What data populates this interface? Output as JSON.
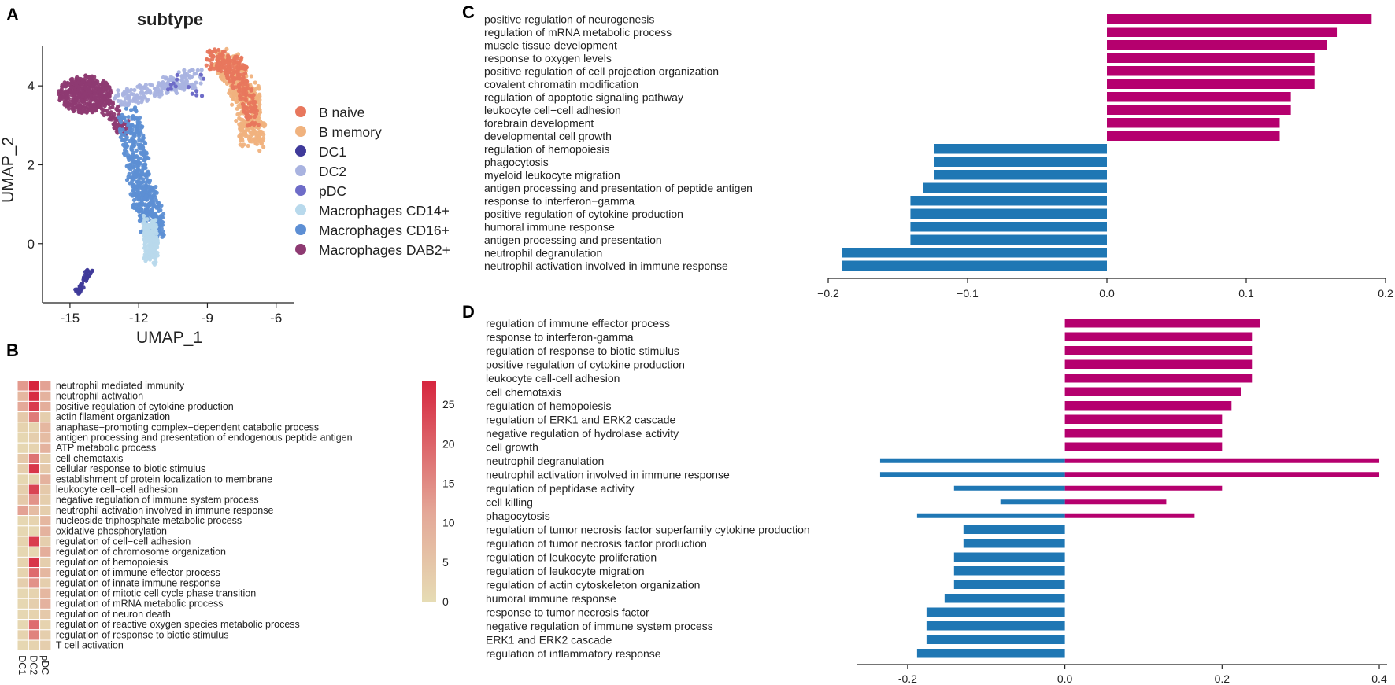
{
  "panels": {
    "A": "A",
    "B": "B",
    "C": "C",
    "D": "D"
  },
  "colors": {
    "up": "#b5006e",
    "down": "#1f77b4"
  },
  "chart_data": [
    {
      "id": "umap",
      "type": "scatter",
      "title": "subtype",
      "xlabel": "UMAP_1",
      "ylabel": "UMAP_2",
      "xlim": [
        -16.2,
        -5.2
      ],
      "ylim": [
        -1.5,
        5.0
      ],
      "xticks": [
        -15,
        -12,
        -9,
        -6
      ],
      "xtick_labels": [
        "-15",
        "-12",
        "-9",
        "-6"
      ],
      "yticks": [
        0,
        2,
        4
      ],
      "ytick_labels": [
        "0",
        "2",
        "4"
      ],
      "legend": [
        {
          "name": "B naive",
          "color": "#e8775d"
        },
        {
          "name": "B memory",
          "color": "#f0b27e"
        },
        {
          "name": "DC1",
          "color": "#3f3a9a"
        },
        {
          "name": "DC2",
          "color": "#a9b3e0"
        },
        {
          "name": "pDC",
          "color": "#6e6cc8"
        },
        {
          "name": "Macrophages  CD14+",
          "color": "#b8d9ec"
        },
        {
          "name": "Macrophages  CD16+",
          "color": "#5d8fd4"
        },
        {
          "name": "Macrophages  DAB2+",
          "color": "#8e3a72"
        }
      ]
    },
    {
      "id": "heatmap",
      "type": "heatmap",
      "columns": [
        "DC1",
        "DC2",
        "pDC"
      ],
      "rows": [
        "neutrophil mediated immunity",
        "neutrophil activation",
        "positive regulation of cytokine production",
        "actin filament organization",
        "anaphase−promoting complex−dependent catabolic process",
        "antigen processing and presentation of endogenous peptide antigen",
        "ATP metabolic process",
        "cell chemotaxis",
        "cellular response to biotic stimulus",
        "establishment of protein localization to membrane",
        "leukocyte cell−cell adhesion",
        "negative regulation of immune system process",
        "neutrophil activation involved in immune response",
        "nucleoside triphosphate metabolic process",
        "oxidative phosphorylation",
        "regulation of cell−cell adhesion",
        "regulation of chromosome organization",
        "regulation of hemopoiesis",
        "regulation of immune effector process",
        "regulation of innate immune response",
        "regulation of mitotic cell cycle phase transition",
        "regulation of mRNA metabolic process",
        "regulation of neuron death",
        "regulation of reactive oxygen species metabolic process",
        "regulation of response to biotic stimulus",
        "T cell activation"
      ],
      "values": [
        [
          13,
          28,
          12
        ],
        [
          8,
          27,
          9
        ],
        [
          11,
          25,
          10
        ],
        [
          4,
          17,
          3
        ],
        [
          2,
          2,
          8
        ],
        [
          1,
          3,
          7
        ],
        [
          1,
          2,
          9
        ],
        [
          4,
          18,
          3
        ],
        [
          3,
          26,
          4
        ],
        [
          1,
          2,
          9
        ],
        [
          3,
          24,
          4
        ],
        [
          4,
          14,
          3
        ],
        [
          12,
          7,
          3
        ],
        [
          1,
          2,
          8
        ],
        [
          1,
          1,
          9
        ],
        [
          2,
          25,
          3
        ],
        [
          1,
          1,
          10
        ],
        [
          2,
          26,
          3
        ],
        [
          2,
          19,
          8
        ],
        [
          3,
          14,
          3
        ],
        [
          1,
          2,
          8
        ],
        [
          1,
          3,
          9
        ],
        [
          1,
          2,
          4
        ],
        [
          1,
          19,
          2
        ],
        [
          2,
          16,
          3
        ],
        [
          1,
          2,
          3
        ]
      ],
      "colorbar_range": [
        0,
        28
      ],
      "colorbar_ticks": [
        0,
        5,
        10,
        15,
        20,
        25
      ],
      "colorbar_tick_labels": [
        "0",
        "5",
        "10",
        "15",
        "20",
        "25"
      ]
    },
    {
      "id": "barC",
      "type": "bar",
      "orientation": "horizontal",
      "categories": [
        "positive regulation of neurogenesis",
        "regulation of mRNA metabolic process",
        "muscle tissue development",
        "response to oxygen levels",
        "positive regulation of cell projection organization",
        "covalent chromatin modification",
        "regulation of apoptotic signaling pathway",
        "leukocyte cell−cell adhesion",
        "forebrain development",
        "developmental cell growth",
        "regulation of hemopoiesis",
        "phagocytosis",
        "myeloid leukocyte migration",
        "antigen processing and presentation of peptide antigen",
        "response to interferon−gamma",
        "positive regulation of cytokine production",
        "humoral immune response",
        "antigen processing and presentation",
        "neutrophil degranulation",
        "neutrophil activation involved in immune response"
      ],
      "values": [
        0.19,
        0.165,
        0.158,
        0.149,
        0.149,
        0.149,
        0.132,
        0.132,
        0.124,
        0.124,
        -0.124,
        -0.124,
        -0.124,
        -0.132,
        -0.141,
        -0.141,
        -0.141,
        -0.141,
        -0.19,
        -0.19
      ],
      "xlim": [
        -0.2,
        0.2
      ],
      "xticks": [
        -0.2,
        -0.1,
        0.0,
        0.1,
        0.2
      ],
      "xtick_labels": [
        "−0.2",
        "−0.1",
        "0.0",
        "0.1",
        "0.2"
      ]
    },
    {
      "id": "barD",
      "type": "bar",
      "orientation": "horizontal",
      "categories": [
        "regulation of immune effector process",
        "response to interferon-gamma",
        "regulation of response to biotic stimulus",
        "positive regulation of cytokine production",
        "leukocyte cell-cell adhesion",
        "cell chemotaxis",
        "regulation of hemopoiesis",
        "regulation of ERK1 and ERK2 cascade",
        "negative regulation of hydrolase activity",
        "cell growth",
        "neutrophil degranulation",
        "neutrophil activation involved in immune response",
        "regulation of peptidase activity",
        "cell killing",
        "phagocytosis",
        "regulation of tumor necrosis factor superfamily cytokine production",
        "regulation of tumor necrosis factor production",
        "regulation of leukocyte proliferation",
        "regulation of leukocyte migration",
        "regulation of actin cytoskeleton organization",
        "humoral immune response",
        "response to tumor necrosis factor",
        "negative regulation of immune system process",
        "ERK1 and ERK2 cascade",
        "regulation of inflammatory response"
      ],
      "bars": [
        [
          {
            "v": 0.248
          }
        ],
        [
          {
            "v": 0.238
          }
        ],
        [
          {
            "v": 0.238
          }
        ],
        [
          {
            "v": 0.238
          }
        ],
        [
          {
            "v": 0.238
          }
        ],
        [
          {
            "v": 0.224
          }
        ],
        [
          {
            "v": 0.212
          }
        ],
        [
          {
            "v": 0.2
          }
        ],
        [
          {
            "v": 0.2
          }
        ],
        [
          {
            "v": 0.2
          }
        ],
        [
          {
            "v": 0.4
          },
          {
            "v": -0.235
          }
        ],
        [
          {
            "v": 0.4
          },
          {
            "v": -0.235
          }
        ],
        [
          {
            "v": 0.2
          },
          {
            "v": -0.141
          }
        ],
        [
          {
            "v": 0.129
          },
          {
            "v": -0.082
          }
        ],
        [
          {
            "v": 0.165
          },
          {
            "v": -0.188
          }
        ],
        [
          {
            "v": -0.129
          }
        ],
        [
          {
            "v": -0.129
          }
        ],
        [
          {
            "v": -0.141
          }
        ],
        [
          {
            "v": -0.141
          }
        ],
        [
          {
            "v": -0.141
          }
        ],
        [
          {
            "v": -0.153
          }
        ],
        [
          {
            "v": -0.176
          }
        ],
        [
          {
            "v": -0.176
          }
        ],
        [
          {
            "v": -0.176
          }
        ],
        [
          {
            "v": -0.188
          }
        ]
      ],
      "xlim": [
        -0.265,
        0.41
      ],
      "xticks": [
        -0.2,
        0.0,
        0.2,
        0.4
      ],
      "xtick_labels": [
        "-0.2",
        "0.0",
        "0.2",
        "0.4"
      ]
    }
  ]
}
